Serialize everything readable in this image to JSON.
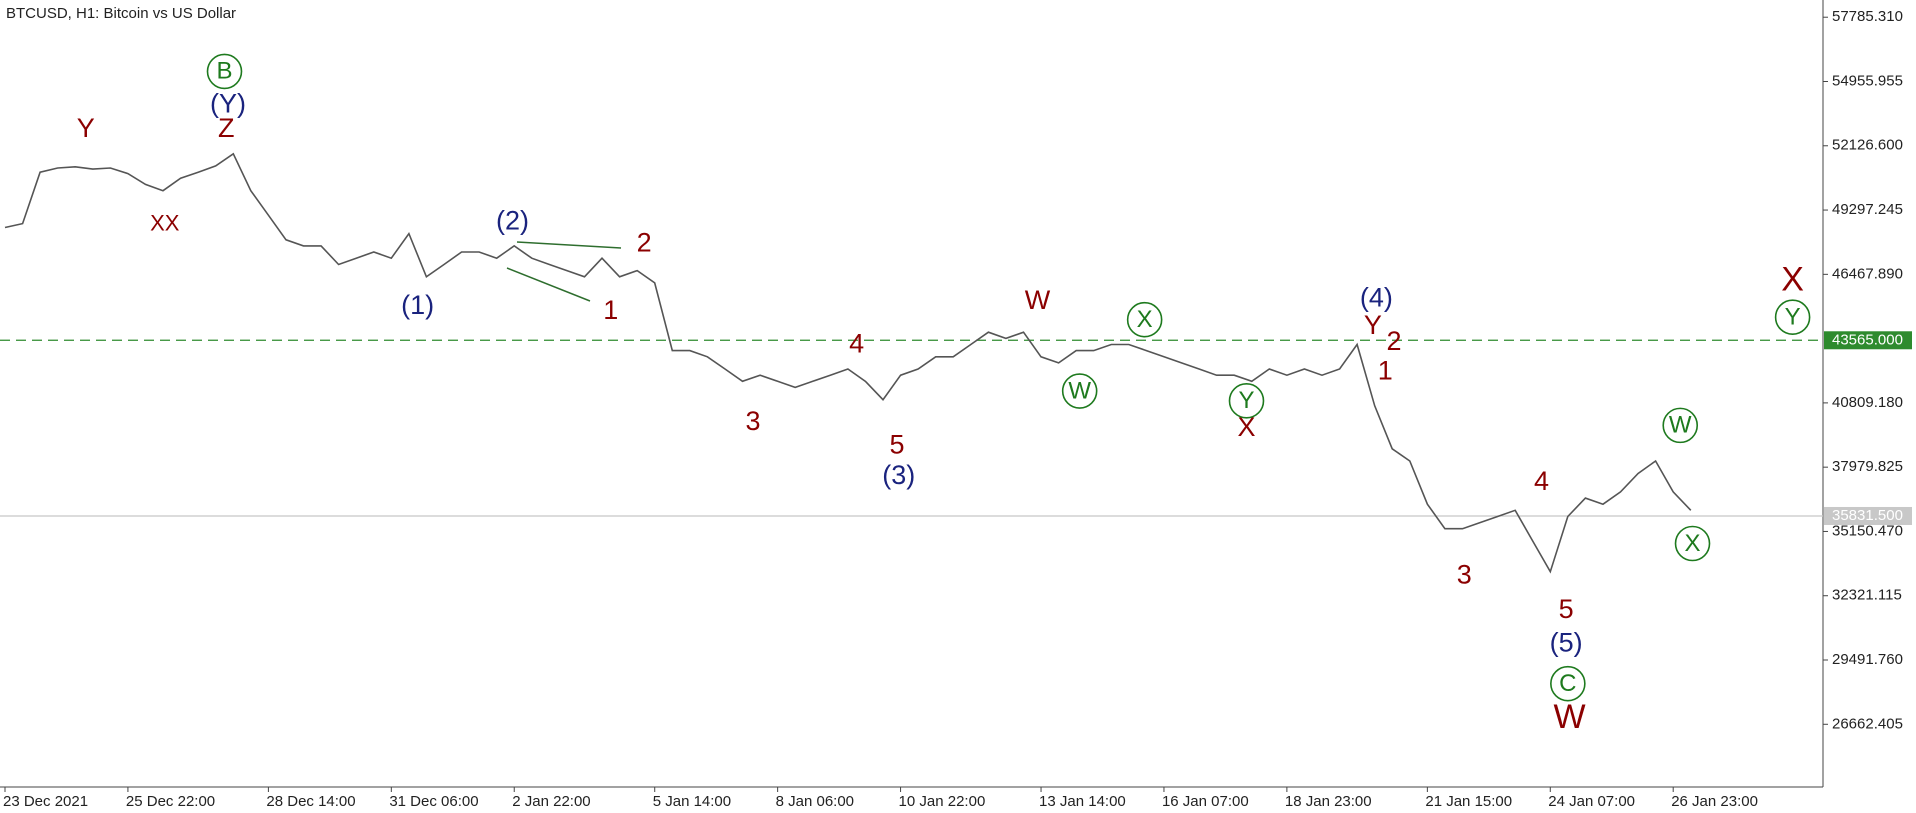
{
  "chart_data": {
    "type": "line",
    "title": "BTCUSD, H1:  Bitcoin vs US Dollar",
    "categories": [
      "23 Dec 2021",
      null,
      null,
      null,
      null,
      null,
      null,
      "25 Dec 22:00",
      null,
      null,
      null,
      null,
      null,
      null,
      null,
      "28 Dec 14:00",
      null,
      null,
      null,
      null,
      null,
      null,
      "31 Dec 06:00",
      null,
      null,
      null,
      null,
      null,
      null,
      "2 Jan 22:00",
      null,
      null,
      null,
      null,
      null,
      null,
      null,
      "5 Jan 14:00",
      null,
      null,
      null,
      null,
      null,
      null,
      "8 Jan 06:00",
      null,
      null,
      null,
      null,
      null,
      null,
      "10 Jan 22:00",
      null,
      null,
      null,
      null,
      null,
      null,
      null,
      "13 Jan 14:00",
      null,
      null,
      null,
      null,
      null,
      null,
      "16 Jan 07:00",
      null,
      null,
      null,
      null,
      null,
      null,
      "18 Jan 23:00",
      null,
      null,
      null,
      null,
      null,
      null,
      null,
      "21 Jan 15:00",
      null,
      null,
      null,
      null,
      null,
      null,
      "24 Jan 07:00",
      null,
      null,
      null,
      null,
      null,
      null,
      "26 Jan 23:00",
      null,
      null,
      null,
      null,
      null,
      null,
      null,
      null
    ],
    "series": [
      {
        "color": "#555555",
        "values": [
          48530,
          48700,
          50965,
          51150,
          51200,
          51100,
          51150,
          50900,
          50425,
          50150,
          50700,
          50965,
          51240,
          51775,
          50150,
          49070,
          47990,
          47720,
          47720,
          46900,
          47180,
          47450,
          47180,
          48260,
          46360,
          46900,
          47450,
          47450,
          47180,
          47720,
          47180,
          46900,
          46630,
          46360,
          47180,
          46360,
          46630,
          46090,
          43110,
          43110,
          42840,
          42300,
          41760,
          42030,
          41760,
          41490,
          41760,
          42030,
          42300,
          41760,
          40950,
          42030,
          42300,
          42840,
          42840,
          43380,
          43920,
          43650,
          43920,
          42840,
          42570,
          43110,
          43110,
          43380,
          43380,
          43110,
          42840,
          42570,
          42300,
          42030,
          42030,
          41760,
          42300,
          42030,
          42300,
          42030,
          42300,
          43380,
          40680,
          38790,
          38250,
          36350,
          35270,
          35270,
          35540,
          35810,
          36080,
          34730,
          33380,
          35810,
          36620,
          36350,
          36890,
          37700,
          38250,
          36890,
          36080,
          null,
          null,
          null,
          null,
          null,
          null,
          null
        ]
      },
      {
        "color": "#aaaaaa",
        "values": [
          null,
          null,
          null,
          null,
          null,
          null,
          null,
          null,
          null,
          null,
          null,
          null,
          null,
          null,
          null,
          null,
          null,
          null,
          null,
          null,
          null,
          null,
          null,
          null,
          null,
          null,
          null,
          null,
          null,
          null,
          null,
          null,
          null,
          null,
          null,
          null,
          null,
          null,
          null,
          null,
          null,
          null,
          null,
          null,
          null,
          null,
          null,
          null,
          null,
          null,
          null,
          null,
          null,
          null,
          null,
          null,
          null,
          null,
          null,
          null,
          null,
          null,
          null,
          null,
          null,
          null,
          null,
          null,
          null,
          null,
          null,
          null,
          null,
          null,
          null,
          null,
          null,
          null,
          null,
          null,
          null,
          null,
          null,
          null,
          null,
          null,
          null,
          null,
          null,
          null,
          null,
          null,
          null,
          null,
          null,
          null,
          36080,
          null,
          null,
          null,
          null,
          null,
          43565,
          null
        ]
      }
    ],
    "ylim": [
      23902,
      58543
    ],
    "yticks": [
      {
        "value": 57785.31,
        "label": "57785.310"
      },
      54955.955,
      {
        "value": 52126.6,
        "label": "52126.600"
      },
      49297.245,
      {
        "value": 46467.89,
        "label": "46467.890"
      },
      {
        "value": 40809.18,
        "label": "40809.180"
      },
      37979.825,
      {
        "value": 35150.47,
        "label": "35150.470"
      },
      32321.115,
      {
        "value": 29491.76,
        "label": "29491.760"
      },
      26662.405
    ],
    "levels": [
      {
        "value": 43565,
        "label": "43565.000",
        "color": "#2e8b2e"
      },
      {
        "value": 35831.5,
        "label": "35831.500",
        "color": "#c8c8c8"
      }
    ],
    "annotations": [
      {
        "text": "Y",
        "x": 4.6,
        "y": 52860,
        "color": "#8b0000"
      },
      {
        "text": "XX",
        "x": 9.1,
        "y": 48690,
        "color": "#8b0000"
      },
      {
        "text": "B",
        "x": 12.5,
        "y": 55400,
        "color": "#1e7a1e",
        "circled": true
      },
      {
        "text": "(Y)",
        "x": 12.7,
        "y": 53940,
        "color": "#1a237e"
      },
      {
        "text": "Z",
        "x": 12.6,
        "y": 52860,
        "color": "#8b0000"
      },
      {
        "text": "(1)",
        "x": 23.5,
        "y": 45070,
        "color": "#1a237e"
      },
      {
        "text": "(2)",
        "x": 28.9,
        "y": 48800,
        "color": "#1a237e"
      },
      {
        "text": "1",
        "x": 34.5,
        "y": 44850,
        "color": "#8b0000"
      },
      {
        "text": "2",
        "x": 36.4,
        "y": 47830,
        "color": "#8b0000"
      },
      {
        "text": "3",
        "x": 42.6,
        "y": 39980,
        "color": "#8b0000"
      },
      {
        "text": "4",
        "x": 48.5,
        "y": 43380,
        "color": "#8b0000"
      },
      {
        "text": "5",
        "x": 50.8,
        "y": 38950,
        "color": "#8b0000"
      },
      {
        "text": "(3)",
        "x": 50.9,
        "y": 37600,
        "color": "#1a237e"
      },
      {
        "text": "W",
        "x": 58.8,
        "y": 45290,
        "color": "#8b0000"
      },
      {
        "text": "W",
        "x": 61.2,
        "y": 41330,
        "color": "#1e7a1e",
        "circled": true
      },
      {
        "text": "X",
        "x": 64.9,
        "y": 44470,
        "color": "#1e7a1e",
        "circled": true
      },
      {
        "text": "Y",
        "x": 70.7,
        "y": 40900,
        "color": "#1e7a1e",
        "circled": true
      },
      {
        "text": "X",
        "x": 70.7,
        "y": 39710,
        "color": "#8b0000"
      },
      {
        "text": "(4)",
        "x": 78.1,
        "y": 45400,
        "color": "#1a237e"
      },
      {
        "text": "Y",
        "x": 77.9,
        "y": 44200,
        "color": "#8b0000"
      },
      {
        "text": "2",
        "x": 79.1,
        "y": 43490,
        "color": "#8b0000"
      },
      {
        "text": "1",
        "x": 78.6,
        "y": 42190,
        "color": "#8b0000"
      },
      {
        "text": "3",
        "x": 83.1,
        "y": 33210,
        "color": "#8b0000"
      },
      {
        "text": "4",
        "x": 87.5,
        "y": 37330,
        "color": "#8b0000"
      },
      {
        "text": "5",
        "x": 88.9,
        "y": 31690,
        "color": "#8b0000"
      },
      {
        "text": "(5)",
        "x": 88.9,
        "y": 30230,
        "color": "#1a237e"
      },
      {
        "text": "C",
        "x": 89,
        "y": 28450,
        "color": "#1e7a1e",
        "circled": true
      },
      {
        "text": "W",
        "x": 89.1,
        "y": 26930,
        "color": "#8b0000",
        "big": true
      },
      {
        "text": "W",
        "x": 95.4,
        "y": 39820,
        "color": "#1e7a1e",
        "circled": true
      },
      {
        "text": "X",
        "x": 96.1,
        "y": 34620,
        "color": "#1e7a1e",
        "circled": true
      },
      {
        "text": "X",
        "x": 101.8,
        "y": 46200,
        "color": "#8b0000",
        "big": true
      },
      {
        "text": "Y",
        "x": 101.8,
        "y": 44580,
        "color": "#1e7a1e",
        "circled": true
      }
    ]
  }
}
